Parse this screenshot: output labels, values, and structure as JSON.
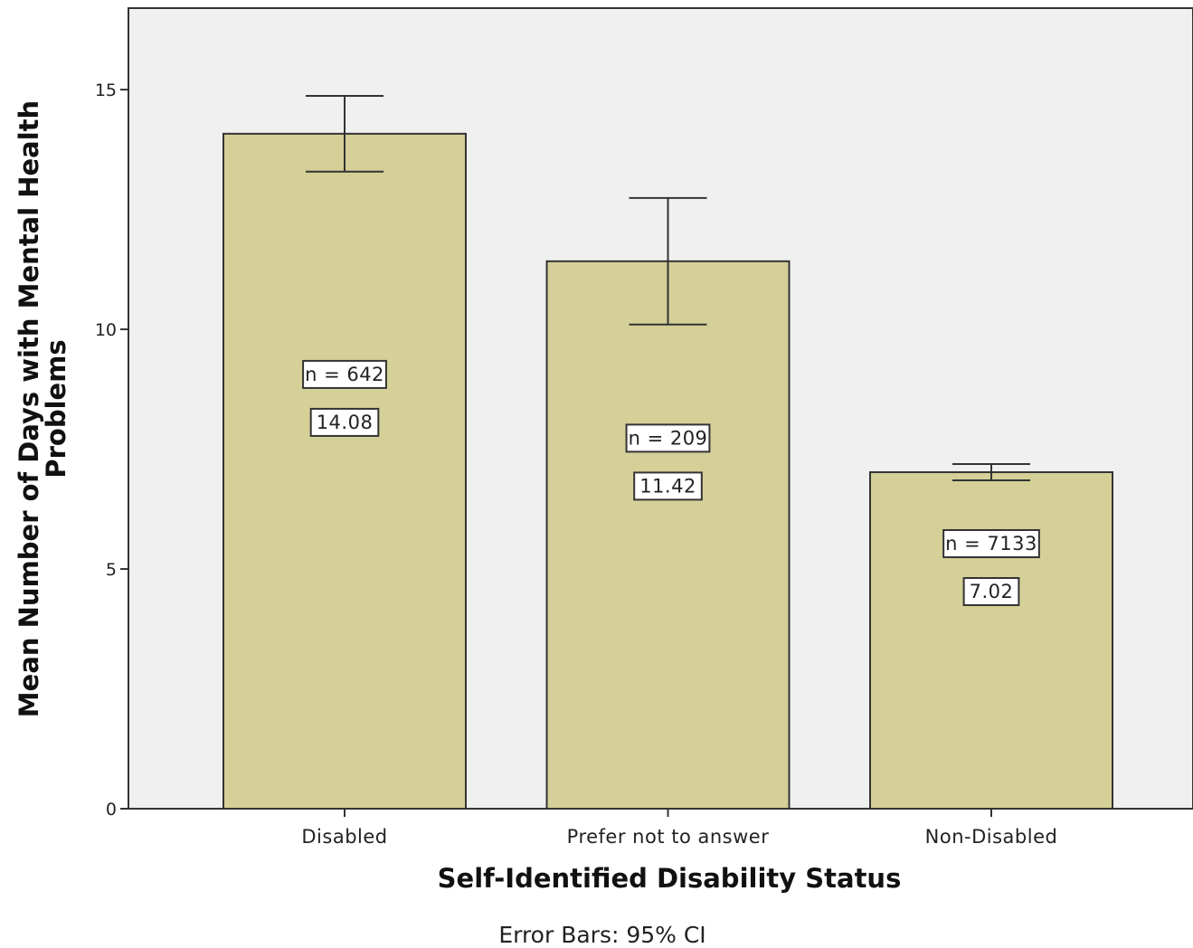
{
  "chart_data": {
    "type": "bar",
    "title": "",
    "xlabel": "Self-Identified Disability Status",
    "ylabel_lines": [
      "Mean Number of Days with Mental Health",
      "Problems"
    ],
    "footnote": "Error Bars: 95% CI",
    "categories": [
      "Disabled",
      "Prefer not to answer",
      "Non-Disabled"
    ],
    "values": [
      14.08,
      11.42,
      7.02
    ],
    "value_labels": [
      "14.08",
      "11.42",
      "7.02"
    ],
    "n_labels": [
      "n = 642",
      "n = 209",
      "n = 7133"
    ],
    "ci_lower": [
      13.29,
      10.1,
      6.85
    ],
    "ci_upper": [
      14.87,
      12.74,
      7.19
    ],
    "yticks": [
      0,
      5,
      10,
      15
    ],
    "ytick_labels": [
      "0",
      "5",
      "10",
      "15"
    ],
    "ylim": [
      0,
      16.7
    ],
    "grid": false,
    "colors": {
      "bar_fill": "#d4d098",
      "plot_background": "#f0f0f0",
      "stroke": "#333333"
    }
  }
}
